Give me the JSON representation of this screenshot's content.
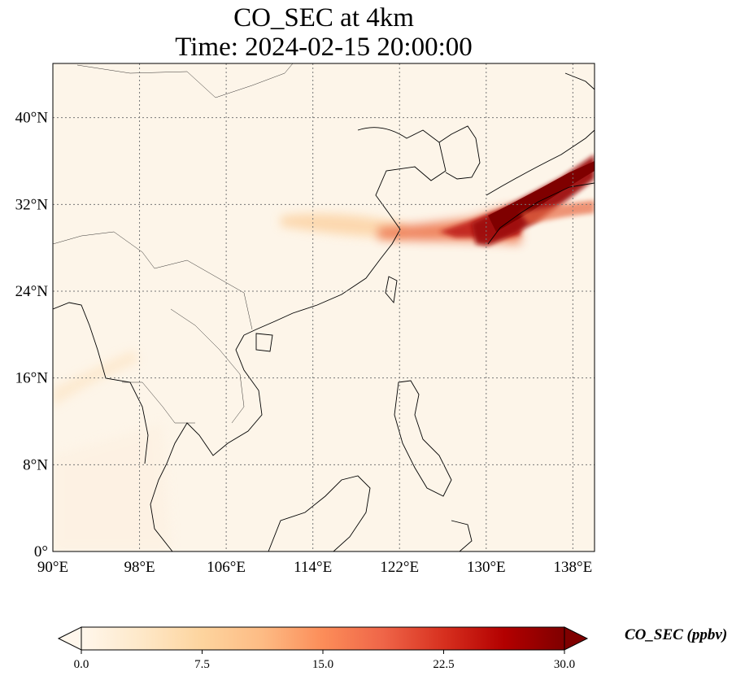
{
  "title": {
    "line1": "CO_SEC at 4km",
    "line2": "Time: 2024-02-15 20:00:00"
  },
  "map": {
    "projection": "PlateCarree",
    "lon_range": [
      90,
      140
    ],
    "lat_range": [
      0,
      45
    ],
    "gridlines": "dotted",
    "lon_ticks": [
      {
        "value": 90,
        "label": "90°E"
      },
      {
        "value": 98,
        "label": "98°E"
      },
      {
        "value": 106,
        "label": "106°E"
      },
      {
        "value": 114,
        "label": "114°E"
      },
      {
        "value": 122,
        "label": "122°E"
      },
      {
        "value": 130,
        "label": "130°E"
      },
      {
        "value": 138,
        "label": "138°E"
      }
    ],
    "lat_ticks": [
      {
        "value": 0,
        "label": "0°"
      },
      {
        "value": 8,
        "label": "8°N"
      },
      {
        "value": 16,
        "label": "16°N"
      },
      {
        "value": 24,
        "label": "24°N"
      },
      {
        "value": 32,
        "label": "32°N"
      },
      {
        "value": 40,
        "label": "40°N"
      }
    ],
    "background_color": "#fdf5e9"
  },
  "colorbar": {
    "label": "CO_SEC (ppbv)",
    "colormap": "OrRd",
    "min": 0.0,
    "max": 30.0,
    "extend": "both",
    "ticks": [
      {
        "value": 0.0,
        "label": "0.0"
      },
      {
        "value": 7.5,
        "label": "7.5"
      },
      {
        "value": 15.0,
        "label": "15.0"
      },
      {
        "value": 22.5,
        "label": "22.5"
      },
      {
        "value": 30.0,
        "label": "30.0"
      }
    ],
    "colors": [
      "#fff7ec",
      "#fee8c8",
      "#fdd49e",
      "#fdbb84",
      "#fc8d59",
      "#ef6548",
      "#d7301f",
      "#b30000",
      "#7f0000"
    ]
  }
}
